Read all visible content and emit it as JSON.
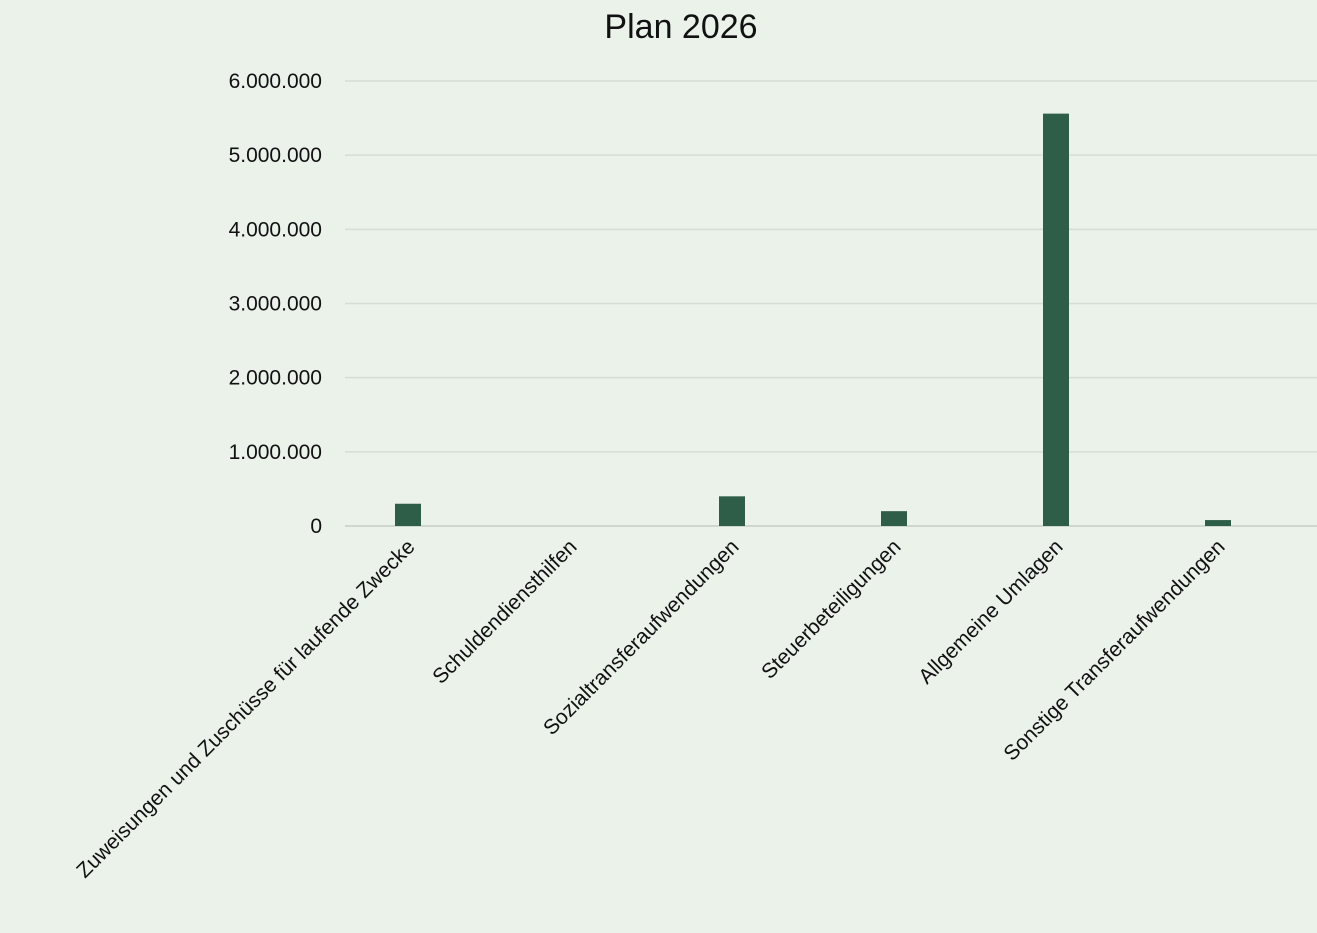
{
  "chart_data": {
    "type": "bar",
    "title": "Plan 2026",
    "xlabel": "",
    "ylabel": "",
    "categories": [
      "Zuweisungen und Zuschüsse für laufende Zwecke",
      "Schuldendiensthilfen",
      "Sozialtransferaufwendungen",
      "Steuerbeteiligungen",
      "Allgemeine Umlagen",
      "Sonstige Transferaufwendungen"
    ],
    "values": [
      300000,
      0,
      400000,
      200000,
      5560000,
      80000
    ],
    "ylim": [
      0,
      6000000
    ],
    "yticks": [
      0,
      1000000,
      2000000,
      3000000,
      4000000,
      5000000,
      6000000
    ],
    "ytick_labels": [
      "0",
      "1.000.000",
      "2.000.000",
      "3.000.000",
      "4.000.000",
      "5.000.000",
      "6.000.000"
    ],
    "grid": true,
    "legend": "none",
    "colors": {
      "bar": "#2e5e47",
      "grid": "#d6dcd6",
      "background": "#eaf2ea",
      "text": "#111111"
    }
  }
}
